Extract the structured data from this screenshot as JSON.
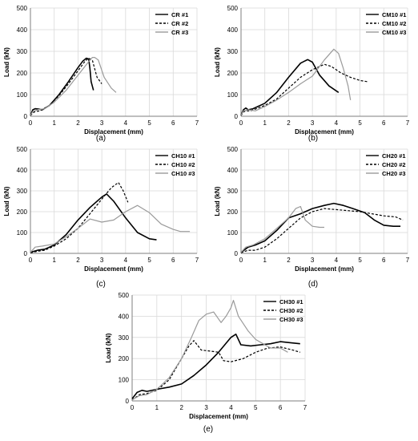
{
  "chart_data": [
    {
      "type": "line",
      "panel_label": "(a)",
      "xlabel": "Displacement (mm)",
      "ylabel": "Load (kN)",
      "xlim": [
        0,
        7
      ],
      "ylim": [
        0,
        500
      ],
      "xticks": [
        0,
        1,
        2,
        3,
        4,
        5,
        6,
        7
      ],
      "yticks": [
        0,
        100,
        200,
        300,
        400,
        500
      ],
      "grid": true,
      "legend": "top-right",
      "series": [
        {
          "name": "CR #1",
          "style": "solid",
          "color": "#000000",
          "x": [
            0,
            0.1,
            0.2,
            0.35,
            0.5,
            0.8,
            1.2,
            1.6,
            2.0,
            2.2,
            2.35,
            2.45,
            2.5,
            2.55,
            2.65
          ],
          "y": [
            5,
            30,
            35,
            33,
            30,
            50,
            100,
            160,
            225,
            255,
            268,
            265,
            220,
            160,
            120
          ]
        },
        {
          "name": "CR #2",
          "style": "dashed",
          "color": "#000000",
          "x": [
            0,
            0.1,
            0.2,
            0.4,
            0.8,
            1.2,
            1.6,
            2.0,
            2.3,
            2.45,
            2.6,
            2.7,
            2.8,
            3.0
          ],
          "y": [
            3,
            15,
            22,
            25,
            50,
            95,
            150,
            210,
            255,
            268,
            260,
            220,
            180,
            150
          ]
        },
        {
          "name": "CR #3",
          "style": "solid",
          "color": "#9a9a9a",
          "x": [
            0,
            0.1,
            0.3,
            0.6,
            1.0,
            1.5,
            2.0,
            2.4,
            2.6,
            2.7,
            2.85,
            3.1,
            3.4,
            3.6
          ],
          "y": [
            5,
            22,
            30,
            35,
            65,
            120,
            190,
            245,
            272,
            272,
            260,
            180,
            130,
            110
          ]
        }
      ]
    },
    {
      "type": "line",
      "panel_label": "(b)",
      "xlabel": "Displacement (mm)",
      "ylabel": "Load (kN)",
      "xlim": [
        0,
        7
      ],
      "ylim": [
        0,
        500
      ],
      "xticks": [
        0,
        1,
        2,
        3,
        4,
        5,
        6,
        7
      ],
      "yticks": [
        0,
        100,
        200,
        300,
        400,
        500
      ],
      "grid": true,
      "legend": "top-right",
      "series": [
        {
          "name": "CM10 #1",
          "style": "solid",
          "color": "#000000",
          "x": [
            0,
            0.1,
            0.2,
            0.3,
            0.5,
            1.0,
            1.5,
            2.0,
            2.5,
            2.8,
            3.0,
            3.3,
            3.7,
            4.1
          ],
          "y": [
            5,
            30,
            38,
            30,
            35,
            60,
            110,
            180,
            245,
            262,
            250,
            190,
            140,
            110
          ]
        },
        {
          "name": "CM10 #2",
          "style": "dashed",
          "color": "#000000",
          "x": [
            0,
            0.1,
            0.2,
            0.4,
            1.0,
            1.5,
            2.0,
            2.5,
            3.0,
            3.5,
            3.8,
            4.2,
            4.6,
            5.0,
            5.3
          ],
          "y": [
            3,
            20,
            25,
            25,
            50,
            80,
            130,
            180,
            215,
            240,
            230,
            200,
            180,
            165,
            160
          ]
        },
        {
          "name": "CM10 #3",
          "style": "solid",
          "color": "#9a9a9a",
          "x": [
            0,
            0.1,
            0.3,
            0.6,
            1.0,
            1.5,
            2.0,
            2.5,
            3.0,
            3.5,
            3.9,
            4.1,
            4.3,
            4.5,
            4.6
          ],
          "y": [
            5,
            25,
            30,
            25,
            45,
            75,
            110,
            150,
            185,
            260,
            310,
            290,
            220,
            140,
            75
          ]
        }
      ]
    },
    {
      "type": "line",
      "panel_label": "(c)",
      "xlabel": "Displacement (mm)",
      "ylabel": "Load (kN)",
      "xlim": [
        0,
        7
      ],
      "ylim": [
        0,
        500
      ],
      "xticks": [
        0,
        1,
        2,
        3,
        4,
        5,
        6,
        7
      ],
      "yticks": [
        0,
        100,
        200,
        300,
        400,
        500
      ],
      "grid": true,
      "legend": "top-right",
      "series": [
        {
          "name": "CH10 #1",
          "style": "solid",
          "color": "#000000",
          "x": [
            0,
            0.3,
            0.6,
            1.0,
            1.5,
            2.0,
            2.5,
            3.0,
            3.2,
            3.5,
            4.0,
            4.5,
            5.0,
            5.3
          ],
          "y": [
            5,
            15,
            20,
            40,
            90,
            160,
            220,
            270,
            285,
            250,
            170,
            100,
            70,
            65
          ]
        },
        {
          "name": "CH10 #2",
          "style": "dashed",
          "color": "#000000",
          "x": [
            0,
            0.3,
            0.6,
            1.0,
            1.5,
            2.0,
            2.5,
            3.0,
            3.4,
            3.7,
            3.9,
            4.1
          ],
          "y": [
            3,
            10,
            15,
            35,
            70,
            120,
            190,
            260,
            315,
            340,
            300,
            245
          ]
        },
        {
          "name": "CH10 #3",
          "style": "solid",
          "color": "#9a9a9a",
          "x": [
            0,
            0.2,
            0.5,
            1.0,
            1.5,
            2.0,
            2.5,
            3.0,
            3.5,
            4.0,
            4.5,
            5.0,
            5.5,
            6.0,
            6.3,
            6.7
          ],
          "y": [
            5,
            30,
            35,
            45,
            80,
            120,
            165,
            150,
            160,
            200,
            230,
            195,
            140,
            115,
            105,
            105
          ]
        }
      ]
    },
    {
      "type": "line",
      "panel_label": "(d)",
      "xlabel": "Displacement (mm)",
      "ylabel": "Load (kN)",
      "xlim": [
        0,
        7
      ],
      "ylim": [
        0,
        500
      ],
      "xticks": [
        0,
        1,
        2,
        3,
        4,
        5,
        6,
        7
      ],
      "yticks": [
        0,
        100,
        200,
        300,
        400,
        500
      ],
      "grid": true,
      "legend": "top-right",
      "series": [
        {
          "name": "CH20 #1",
          "style": "solid",
          "color": "#000000",
          "x": [
            0,
            0.3,
            0.6,
            1.0,
            1.5,
            2.0,
            2.5,
            3.0,
            3.5,
            3.9,
            4.3,
            4.7,
            5.2,
            5.6,
            6.0,
            6.4,
            6.7
          ],
          "y": [
            5,
            30,
            40,
            60,
            110,
            170,
            190,
            215,
            230,
            240,
            230,
            215,
            195,
            160,
            135,
            130,
            130
          ]
        },
        {
          "name": "CH20 #2",
          "style": "dashed",
          "color": "#000000",
          "x": [
            0,
            0.3,
            0.6,
            1.0,
            1.5,
            2.0,
            2.5,
            3.0,
            3.5,
            4.0,
            4.5,
            5.0,
            5.5,
            6.0,
            6.5,
            6.8
          ],
          "y": [
            3,
            15,
            15,
            30,
            70,
            120,
            170,
            200,
            215,
            210,
            205,
            200,
            190,
            180,
            175,
            160
          ]
        },
        {
          "name": "CH20 #3",
          "style": "solid",
          "color": "#9a9a9a",
          "x": [
            0,
            0.2,
            0.5,
            1.0,
            1.5,
            2.0,
            2.3,
            2.5,
            2.7,
            3.0,
            3.3,
            3.5
          ],
          "y": [
            5,
            30,
            40,
            70,
            120,
            170,
            215,
            225,
            160,
            130,
            125,
            125
          ]
        }
      ]
    },
    {
      "type": "line",
      "panel_label": "(e)",
      "xlabel": "Displacement (mm)",
      "ylabel": "Load (kN)",
      "xlim": [
        0,
        7
      ],
      "ylim": [
        0,
        500
      ],
      "xticks": [
        0,
        1,
        2,
        3,
        4,
        5,
        6,
        7
      ],
      "yticks": [
        0,
        100,
        200,
        300,
        400,
        500
      ],
      "grid": true,
      "legend": "top-right",
      "series": [
        {
          "name": "CH30 #1",
          "style": "solid",
          "color": "#000000",
          "x": [
            0,
            0.2,
            0.4,
            0.6,
            1.0,
            1.5,
            2.0,
            2.5,
            3.0,
            3.5,
            4.0,
            4.2,
            4.4,
            4.8,
            5.2,
            5.6,
            6.0,
            6.4,
            6.8
          ],
          "y": [
            10,
            40,
            50,
            45,
            55,
            65,
            80,
            120,
            170,
            230,
            300,
            315,
            265,
            260,
            265,
            270,
            280,
            275,
            270
          ]
        },
        {
          "name": "CH30 #2",
          "style": "dashed",
          "color": "#000000",
          "x": [
            0,
            0.3,
            0.6,
            1.0,
            1.5,
            2.0,
            2.3,
            2.5,
            2.8,
            3.2,
            3.5,
            3.7,
            4.0,
            4.5,
            5.0,
            5.5,
            6.0,
            6.5,
            6.8
          ],
          "y": [
            5,
            30,
            35,
            50,
            100,
            200,
            260,
            285,
            240,
            235,
            230,
            190,
            185,
            200,
            230,
            250,
            255,
            240,
            230
          ]
        },
        {
          "name": "CH30 #3",
          "style": "solid",
          "color": "#9a9a9a",
          "x": [
            0,
            0.3,
            0.6,
            1.0,
            1.5,
            2.0,
            2.4,
            2.7,
            3.0,
            3.3,
            3.6,
            3.8,
            4.0,
            4.1,
            4.3,
            4.7,
            5.0,
            5.3,
            5.6,
            6.0,
            6.3
          ],
          "y": [
            5,
            25,
            30,
            55,
            110,
            200,
            300,
            380,
            410,
            420,
            370,
            400,
            440,
            475,
            400,
            330,
            290,
            270,
            250,
            250,
            230
          ]
        }
      ]
    }
  ]
}
